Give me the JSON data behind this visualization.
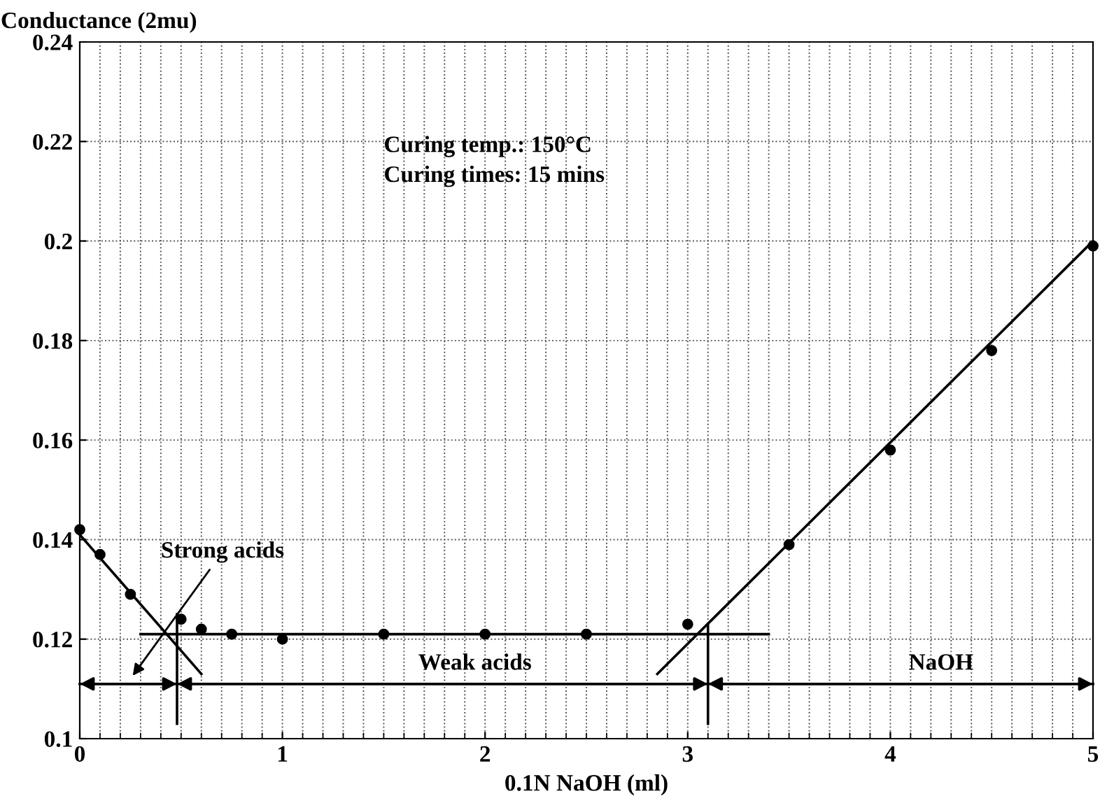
{
  "chart_data": {
    "type": "scatter",
    "xlabel": "0.1N NaOH (ml)",
    "ylabel": "Conductance (2mu)",
    "xlim": [
      0,
      5
    ],
    "ylim": [
      0.1,
      0.24
    ],
    "xticks": [
      0,
      1,
      2,
      3,
      4,
      5
    ],
    "yticks": [
      0.1,
      0.12,
      0.14,
      0.16,
      0.18,
      0.2,
      0.22,
      0.24
    ],
    "grid": true,
    "series": [
      {
        "marker": "circle",
        "color": "#000000",
        "x": [
          0,
          0.1,
          0.25,
          0.5,
          0.6,
          0.75,
          1,
          1.5,
          2,
          2.5,
          3,
          3.5,
          4,
          4.5,
          5
        ],
        "values": [
          0.142,
          0.137,
          0.129,
          0.124,
          0.122,
          0.121,
          0.12,
          0.121,
          0.121,
          0.121,
          0.123,
          0.139,
          0.158,
          0.178,
          0.199
        ]
      },
      {
        "type": "line",
        "color": "#000000",
        "x": [
          0,
          0.6
        ],
        "values": [
          0.141,
          0.113
        ]
      },
      {
        "type": "line",
        "color": "#000000",
        "x": [
          0.3,
          3.4
        ],
        "values": [
          0.121,
          0.121
        ]
      },
      {
        "type": "line",
        "color": "#000000",
        "x": [
          2.85,
          5
        ],
        "values": [
          0.113,
          0.2
        ]
      },
      {
        "type": "line",
        "color": "#000000",
        "x": [
          0.48,
          0.48
        ],
        "values": [
          0.103,
          0.125
        ]
      },
      {
        "type": "line",
        "color": "#000000",
        "x": [
          3.1,
          3.1
        ],
        "values": [
          0.103,
          0.123
        ]
      },
      {
        "type": "line",
        "color": "#000000",
        "x": [
          0,
          0.48,
          3.1,
          5
        ],
        "values": [
          0.111,
          0.111,
          0.111,
          0.111
        ]
      }
    ],
    "annotations": [
      "Curing temp.: 150°C",
      "Curing times: 15 mins",
      {
        "text": "Strong acids",
        "x": 0.25,
        "y": 0.112
      },
      "Weak acids",
      "NaOH"
    ]
  }
}
